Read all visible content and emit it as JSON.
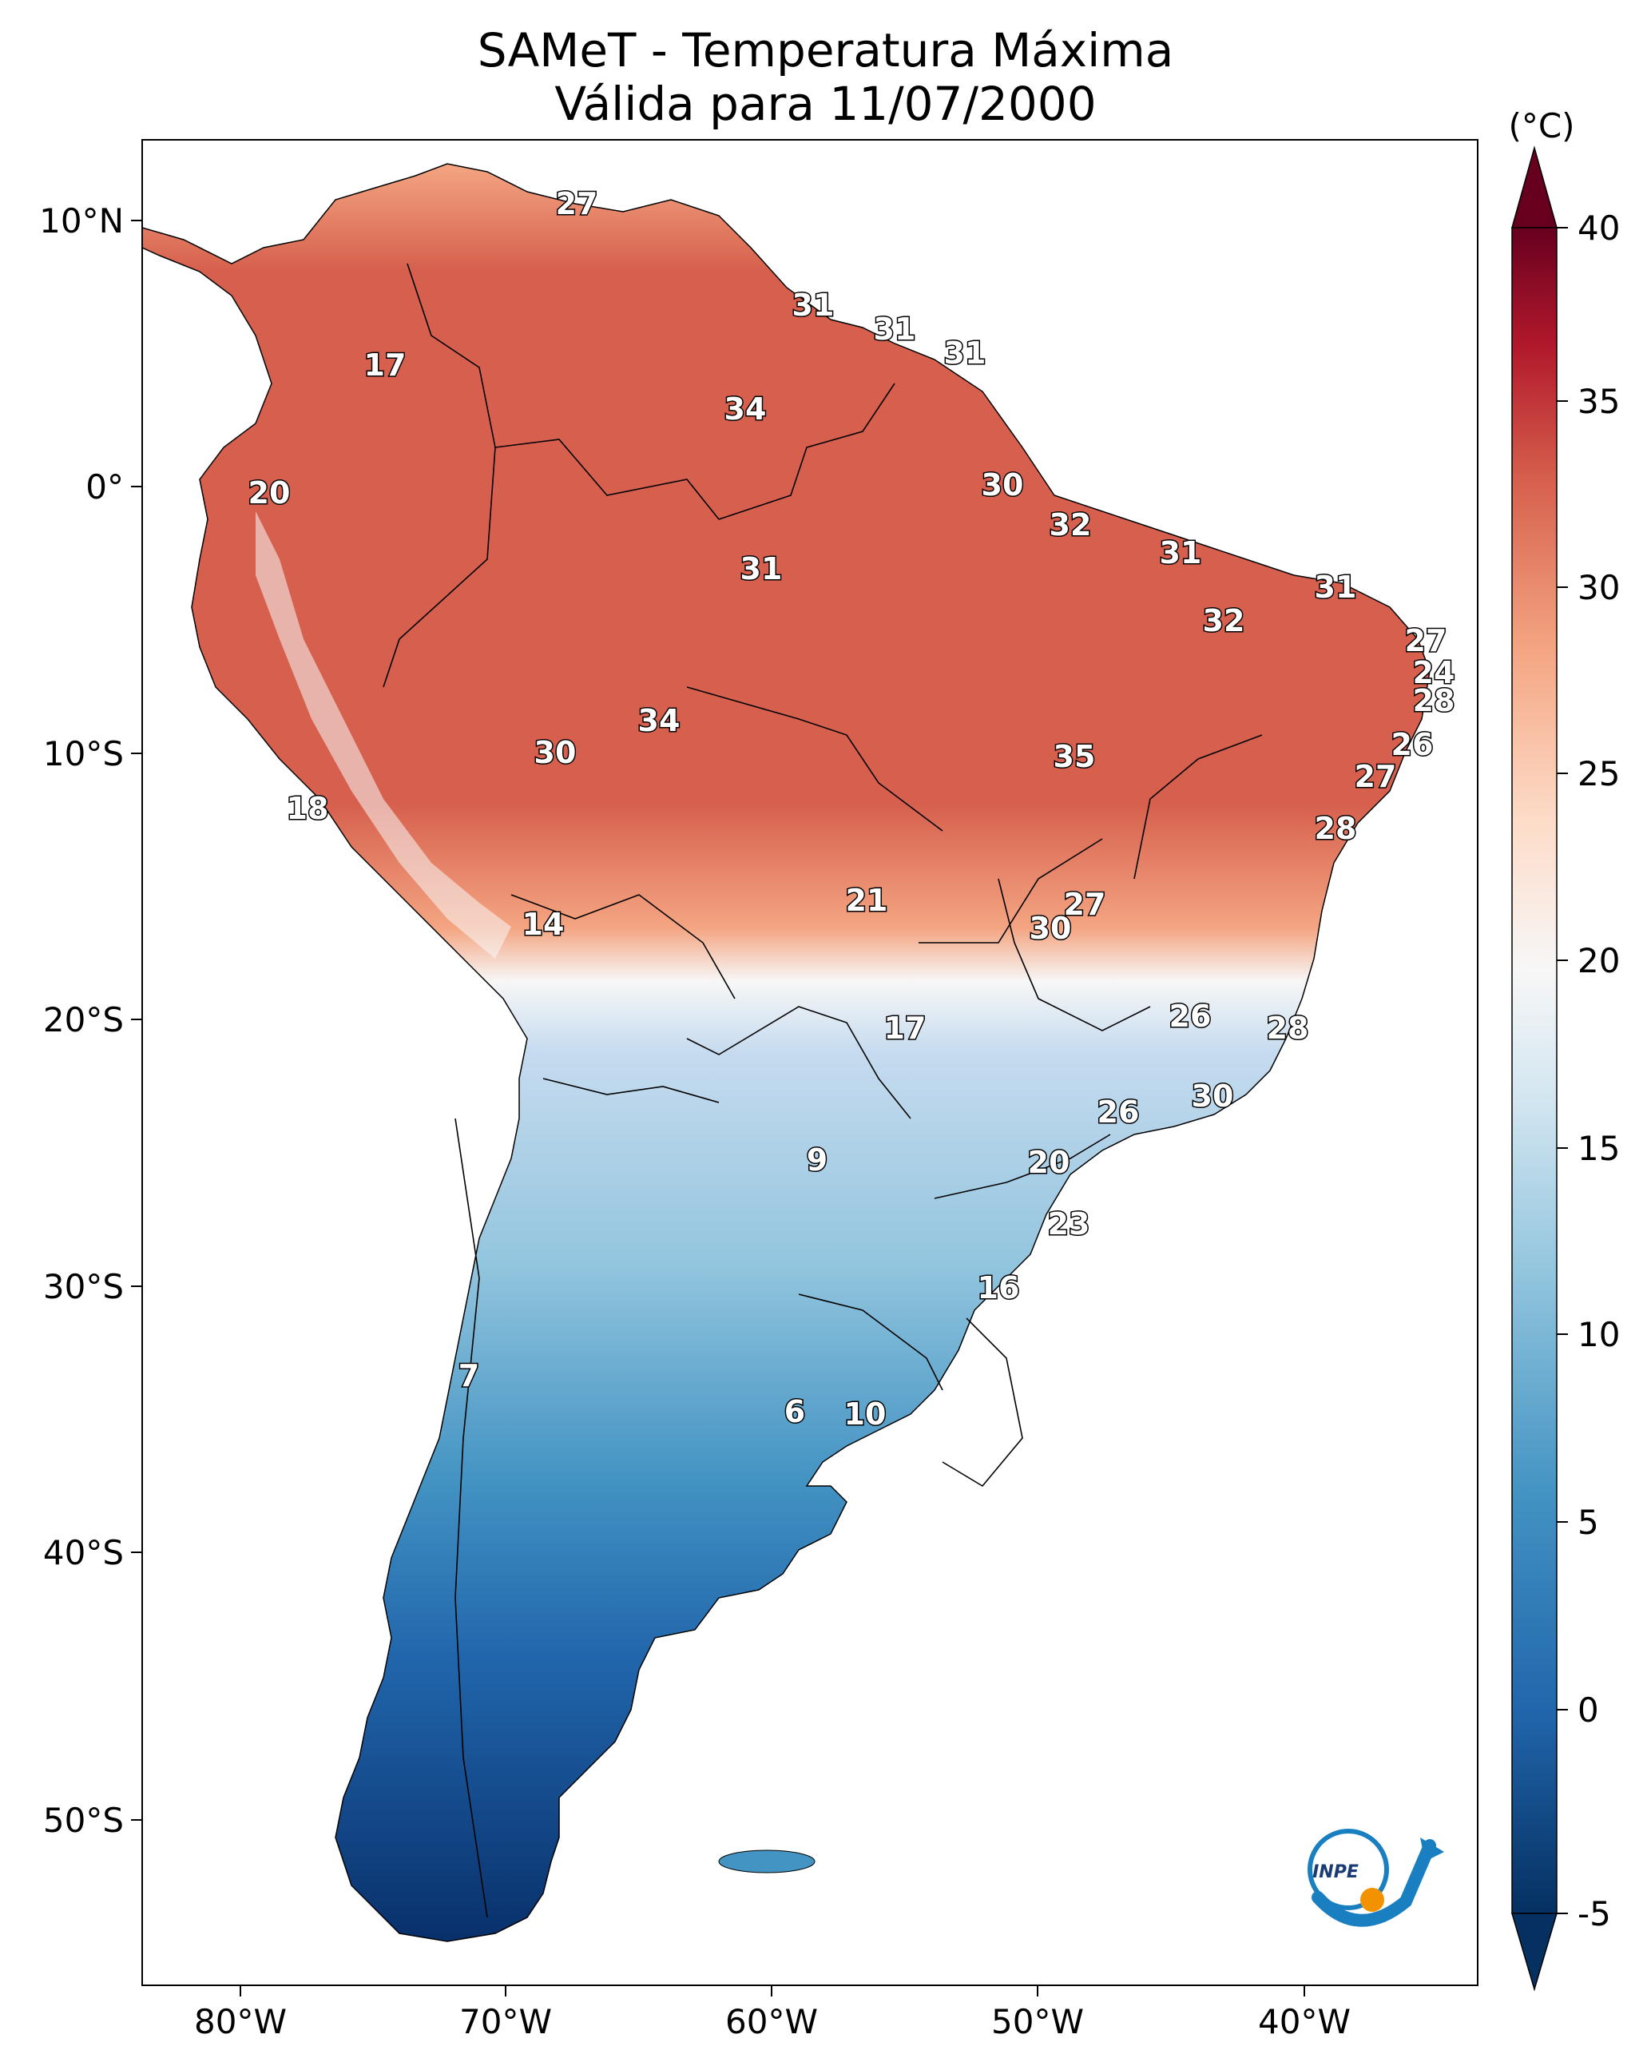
{
  "title": {
    "line1": "SAMeT - Temperatura Máxima",
    "line2": "Válida para 11/07/2000"
  },
  "map": {
    "lat_ticks": [
      "10°N",
      "0°",
      "10°S",
      "20°S",
      "30°S",
      "40°S",
      "50°S"
    ],
    "lon_ticks": [
      "80°W",
      "70°W",
      "60°W",
      "50°W",
      "40°W"
    ],
    "value_labels": [
      "27",
      "17",
      "31",
      "31",
      "31",
      "34",
      "20",
      "30",
      "32",
      "31",
      "31",
      "31",
      "32",
      "27",
      "24",
      "28",
      "34",
      "30",
      "35",
      "26",
      "18",
      "27",
      "28",
      "14",
      "21",
      "27",
      "30",
      "17",
      "26",
      "28",
      "30",
      "26",
      "9",
      "20",
      "23",
      "16",
      "7",
      "6",
      "10"
    ]
  },
  "colorbar": {
    "unit": "(°C)",
    "ticks": [
      "40",
      "35",
      "30",
      "25",
      "20",
      "15",
      "10",
      "5",
      "0",
      "-5"
    ],
    "min": -5,
    "max": 40
  },
  "logo": {
    "text": "INPE",
    "blue": "#1a7fc1",
    "orange": "#f29200"
  },
  "colors": {
    "deep_blue": "#08306b",
    "mid_blue": "#4a90c4",
    "light_blue": "#c6dbef",
    "white": "#f7f7f7",
    "salmon": "#f4a582",
    "red": "#d6604d",
    "dark_red": "#67001f"
  }
}
